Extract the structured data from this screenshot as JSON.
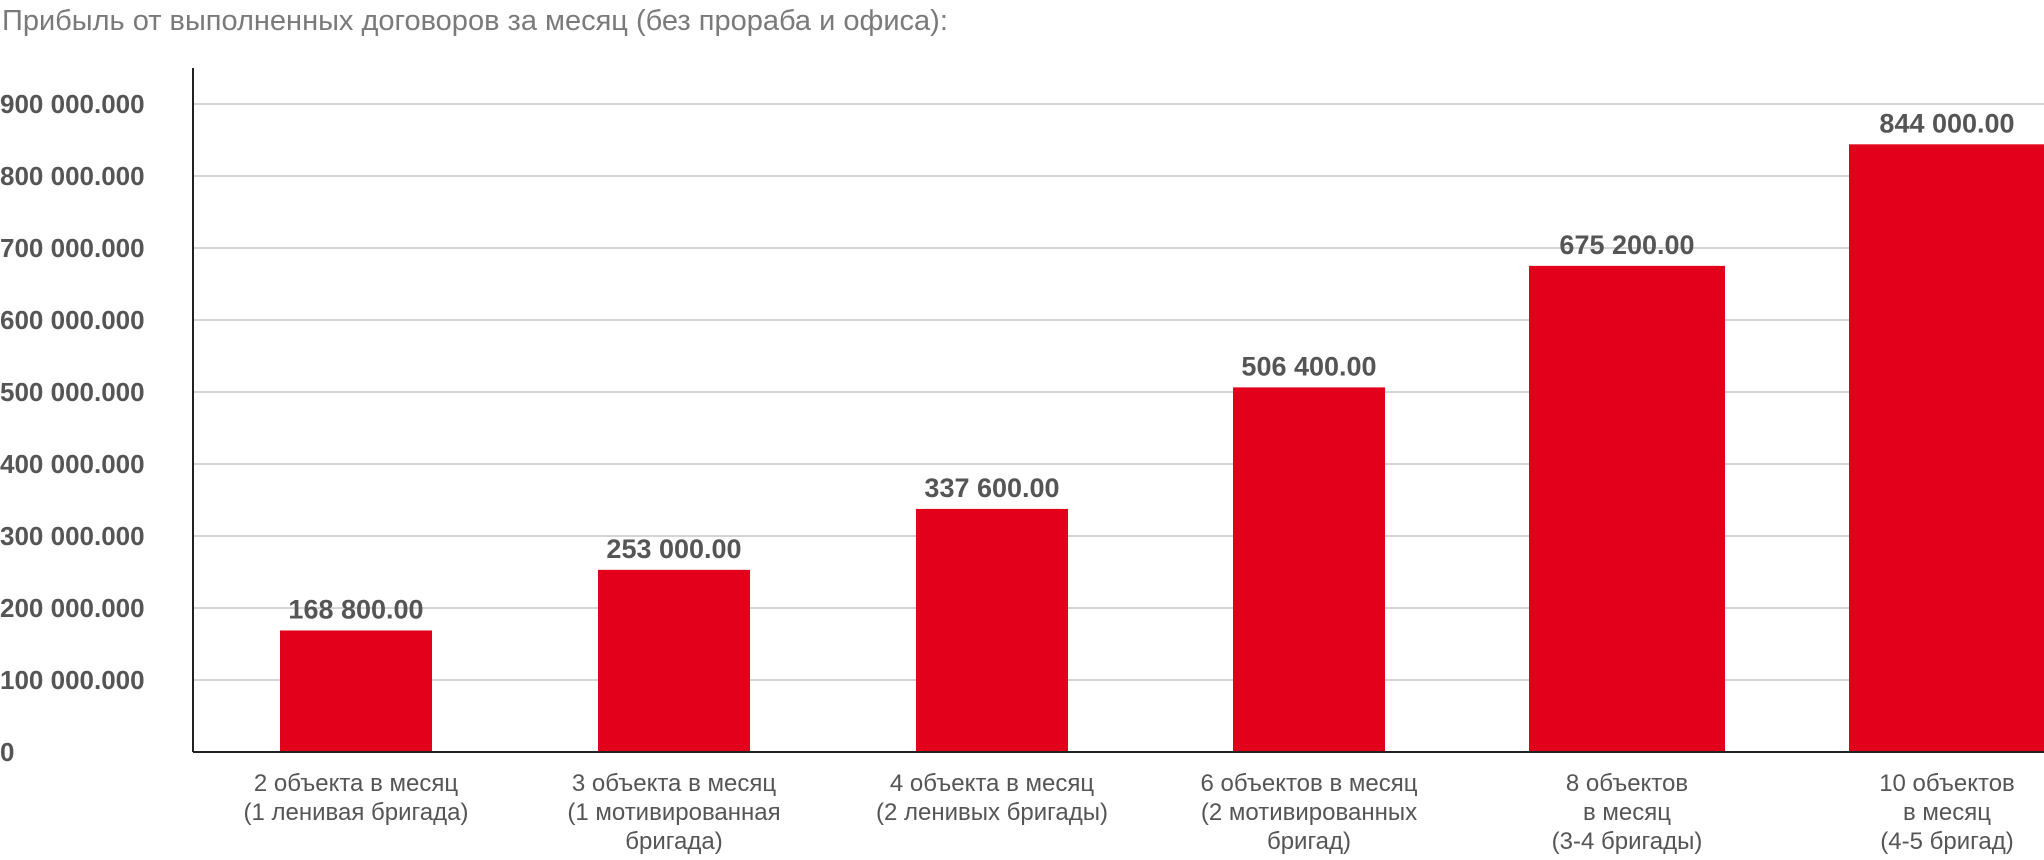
{
  "chart_data": {
    "type": "bar",
    "title": "Прибыль от выполненных договоров за месяц (без прораба и офиса):",
    "xlabel": "",
    "ylabel": "",
    "ylim": [
      0,
      950000
    ],
    "grid": true,
    "legend": "none",
    "bar_color": "#e2001a",
    "yticks": [
      {
        "value": 0,
        "label": "0"
      },
      {
        "value": 100000,
        "label": "100 000.000"
      },
      {
        "value": 200000,
        "label": "200 000.000"
      },
      {
        "value": 300000,
        "label": "300 000.000"
      },
      {
        "value": 400000,
        "label": "400 000.000"
      },
      {
        "value": 500000,
        "label": "500 000.000"
      },
      {
        "value": 600000,
        "label": "600 000.000"
      },
      {
        "value": 700000,
        "label": "700 000.000"
      },
      {
        "value": 800000,
        "label": "800 000.000"
      },
      {
        "value": 900000,
        "label": "900 000.000"
      }
    ],
    "categories": [
      [
        "2 объекта в месяц",
        "(1 ленивая бригада)"
      ],
      [
        "3 объекта в месяц",
        "(1 мотивированная",
        "бригада)"
      ],
      [
        "4 объекта в месяц",
        "(2 ленивых бригады)"
      ],
      [
        "6 объектов в месяц",
        "(2 мотивированных",
        "бригад)"
      ],
      [
        "8 объектов",
        "в месяц",
        "(3-4 бригады)"
      ],
      [
        "10 объектов",
        "в месяц",
        "(4-5 бригад)"
      ]
    ],
    "values": [
      168800,
      253000,
      337600,
      506400,
      675200,
      844000
    ],
    "data_labels": [
      "168 800.00",
      "253 000.00",
      "337 600.00",
      "506 400.00",
      "675 200.00",
      "844 000.00"
    ]
  }
}
